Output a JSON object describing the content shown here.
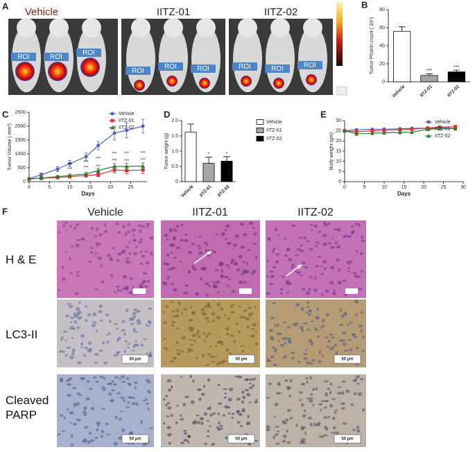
{
  "panels": {
    "A": {
      "label": "A",
      "groups": [
        "Vehicle",
        "IITZ-01",
        "IITZ-02"
      ],
      "roi": "ROI"
    }
  },
  "chart_data": [
    {
      "type": "bar",
      "label": "B",
      "ylabel": "Tumor Photon count ( 10⁸)",
      "categories": [
        "Vehicle",
        "IITZ-01",
        "IITZ-02"
      ],
      "values": [
        56,
        7,
        11
      ],
      "errors": [
        5,
        2,
        2
      ],
      "colors": [
        "#ffffff",
        "#a6a6a6",
        "#000000"
      ],
      "significance": [
        null,
        "***",
        "***"
      ],
      "ylim": [
        0,
        80
      ],
      "yticks": [
        0,
        20,
        40,
        60,
        80
      ]
    },
    {
      "type": "line",
      "label": "C",
      "ylabel": "Tumor Volume ( mm³)",
      "xlabel": "Days",
      "xlim": [
        0,
        29
      ],
      "xticks": [
        0,
        5,
        10,
        15,
        20,
        25
      ],
      "ylim": [
        0,
        2500
      ],
      "yticks": [
        0,
        500,
        1000,
        1500,
        2000,
        2500
      ],
      "legend": "upper-right",
      "series": [
        {
          "name": "Vehicle",
          "color": "#4a5fc1",
          "marker": "circle",
          "x": [
            0,
            3,
            7,
            10,
            14,
            17,
            21,
            24,
            28
          ],
          "values": [
            100,
            250,
            450,
            650,
            900,
            1300,
            1750,
            1850,
            2000
          ],
          "errors": [
            30,
            60,
            90,
            110,
            130,
            150,
            250,
            270,
            250
          ],
          "significance": [
            null,
            null,
            null,
            null,
            null,
            null,
            null,
            null,
            null
          ]
        },
        {
          "name": "IITZ-01",
          "color": "#e03030",
          "marker": "square",
          "x": [
            0,
            3,
            7,
            10,
            14,
            17,
            21,
            24,
            28
          ],
          "values": [
            100,
            120,
            150,
            180,
            220,
            250,
            420,
            400,
            420
          ],
          "errors": [
            20,
            30,
            40,
            40,
            60,
            70,
            110,
            120,
            130
          ],
          "significance": [
            null,
            null,
            null,
            "***",
            "***",
            "***",
            "***",
            "***",
            "***"
          ]
        },
        {
          "name": "IITZ-02",
          "color": "#2a7a2a",
          "marker": "triangle",
          "x": [
            0,
            3,
            7,
            10,
            14,
            17,
            21,
            24,
            28
          ],
          "values": [
            100,
            130,
            180,
            220,
            280,
            400,
            550,
            550,
            560
          ],
          "errors": [
            20,
            30,
            40,
            50,
            60,
            80,
            100,
            110,
            120
          ],
          "significance": [
            null,
            null,
            null,
            "***",
            "***",
            "***",
            "***",
            "***",
            "***"
          ]
        }
      ]
    },
    {
      "type": "bar",
      "label": "D",
      "ylabel": "Tumor weight (g)",
      "categories": [
        "Vehicle",
        "IITZ-01",
        "IITZ-02"
      ],
      "values": [
        1.62,
        0.6,
        0.67
      ],
      "errors": [
        0.27,
        0.2,
        0.15
      ],
      "colors": [
        "#ffffff",
        "#a6a6a6",
        "#000000"
      ],
      "significance": [
        null,
        "*",
        "*"
      ],
      "legend": "outside-right",
      "ylim": [
        0,
        2
      ],
      "yticks": [
        0,
        0.5,
        {
          "value": 1,
          "label": "1.0"
        },
        1.5,
        {
          "value": 2,
          "label": "2.0"
        }
      ]
    },
    {
      "type": "line",
      "label": "E",
      "ylabel": "Body weight (gm)",
      "xlabel": "Days",
      "xlim": [
        0,
        30
      ],
      "xticks": [
        0,
        5,
        10,
        15,
        20,
        25,
        30
      ],
      "ylim": [
        0,
        30
      ],
      "yticks": [
        0,
        5,
        10,
        15,
        20,
        25,
        30
      ],
      "legend": "upper-right",
      "series": [
        {
          "name": "Vehicle",
          "color": "#4a5fc1",
          "marker": "circle",
          "x": [
            0,
            3,
            7,
            10,
            14,
            17,
            21,
            24,
            28
          ],
          "values": [
            25,
            25.5,
            25.7,
            25.8,
            26,
            26.2,
            26.3,
            26.3,
            26.2
          ]
        },
        {
          "name": "IITZ-01",
          "color": "#e03030",
          "marker": "square",
          "x": [
            0,
            3,
            7,
            10,
            14,
            17,
            21,
            24,
            28
          ],
          "values": [
            25,
            24.5,
            25,
            25.2,
            25.5,
            25.8,
            26.3,
            26.8,
            27
          ]
        },
        {
          "name": "IITZ-02",
          "color": "#2a7a2a",
          "marker": "triangle",
          "x": [
            0,
            3,
            7,
            10,
            14,
            17,
            21,
            24,
            28
          ],
          "values": [
            25,
            23.5,
            23.8,
            24,
            24.2,
            24.3,
            25.8,
            26,
            26.1
          ]
        }
      ]
    }
  ],
  "histology": {
    "label": "F",
    "columns": [
      "Vehicle",
      "IITZ-01",
      "IITZ-02"
    ],
    "rows": [
      "H & E",
      "LC3-II",
      "Cleaved PARP"
    ],
    "scale_bar": "50 µm"
  }
}
